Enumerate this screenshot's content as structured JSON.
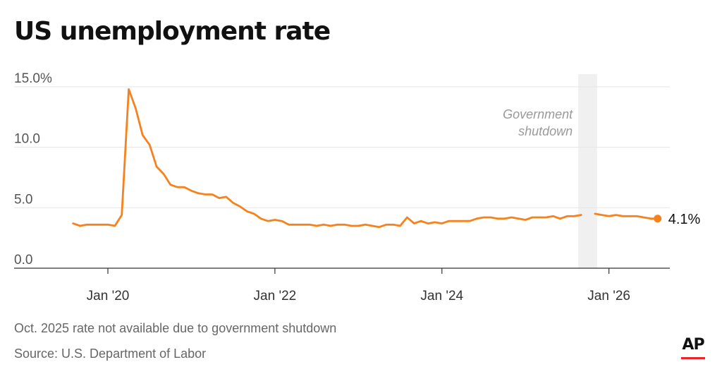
{
  "title": "US unemployment rate",
  "note": "Oct. 2025 rate not available due to government shutdown",
  "source": "Source: U.S. Department of Labor",
  "logo": {
    "text": "AP",
    "accent": "#e8262c"
  },
  "colors": {
    "line": "#f5821f",
    "shade": "#f0f0f0",
    "grid": "#e6e6e6",
    "axis": "#333333",
    "annotation": "#9a9a9a"
  },
  "chart_data": {
    "type": "line",
    "title": "US unemployment rate",
    "xlabel": "",
    "ylabel": "",
    "ylim": [
      0,
      15
    ],
    "y_ticks": [
      {
        "value": 0,
        "label": "0.0"
      },
      {
        "value": 5,
        "label": "5.0"
      },
      {
        "value": 10,
        "label": "10.0"
      },
      {
        "value": 15,
        "label": "15.0%"
      }
    ],
    "x_ticks": [
      {
        "value": "2020-01",
        "label": "Jan '20"
      },
      {
        "value": "2022-01",
        "label": "Jan '22"
      },
      {
        "value": "2024-01",
        "label": "Jan '24"
      },
      {
        "value": "2026-01",
        "label": "Jan '26"
      }
    ],
    "x_range": [
      "2019-05",
      "2026-08"
    ],
    "shaded_period": {
      "start": "2025-09",
      "end": "2025-11",
      "label": [
        "Government",
        "shutdown"
      ]
    },
    "end_label": "4.1%",
    "grid": true,
    "series": [
      {
        "segments": [
          {
            "x": [
              "2019-08",
              "2019-09",
              "2019-10",
              "2019-11",
              "2019-12",
              "2020-01",
              "2020-02",
              "2020-03",
              "2020-04",
              "2020-05",
              "2020-06",
              "2020-07",
              "2020-08",
              "2020-09",
              "2020-10",
              "2020-11",
              "2020-12",
              "2021-01",
              "2021-02",
              "2021-03",
              "2021-04",
              "2021-05",
              "2021-06",
              "2021-07",
              "2021-08",
              "2021-09",
              "2021-10",
              "2021-11",
              "2021-12",
              "2022-01",
              "2022-02",
              "2022-03",
              "2022-04",
              "2022-05",
              "2022-06",
              "2022-07",
              "2022-08",
              "2022-09",
              "2022-10",
              "2022-11",
              "2022-12",
              "2023-01",
              "2023-02",
              "2023-03",
              "2023-04",
              "2023-05",
              "2023-06",
              "2023-07",
              "2023-08",
              "2023-09",
              "2023-10",
              "2023-11",
              "2023-12",
              "2024-01",
              "2024-02",
              "2024-03",
              "2024-04",
              "2024-05",
              "2024-06",
              "2024-07",
              "2024-08",
              "2024-09",
              "2024-10",
              "2024-11",
              "2024-12",
              "2025-01",
              "2025-02",
              "2025-03",
              "2025-04",
              "2025-05",
              "2025-06",
              "2025-07",
              "2025-08",
              "2025-09"
            ],
            "y": [
              3.7,
              3.5,
              3.6,
              3.6,
              3.6,
              3.6,
              3.5,
              4.4,
              14.8,
              13.2,
              11.0,
              10.2,
              8.4,
              7.8,
              6.9,
              6.7,
              6.7,
              6.4,
              6.2,
              6.1,
              6.1,
              5.8,
              5.9,
              5.4,
              5.1,
              4.7,
              4.5,
              4.1,
              3.9,
              4.0,
              3.9,
              3.6,
              3.6,
              3.6,
              3.6,
              3.5,
              3.6,
              3.5,
              3.6,
              3.6,
              3.5,
              3.5,
              3.6,
              3.5,
              3.4,
              3.6,
              3.6,
              3.5,
              4.2,
              3.7,
              3.9,
              3.7,
              3.8,
              3.7,
              3.9,
              3.9,
              3.9,
              3.9,
              4.1,
              4.2,
              4.2,
              4.1,
              4.1,
              4.2,
              4.1,
              4.0,
              4.2,
              4.2,
              4.2,
              4.3,
              4.1,
              4.3,
              4.3,
              4.4
            ]
          },
          {
            "x": [
              "2025-11",
              "2025-12",
              "2026-01",
              "2026-02",
              "2026-03",
              "2026-04",
              "2026-05",
              "2026-06",
              "2026-07",
              "2026-08"
            ],
            "y": [
              4.5,
              4.4,
              4.3,
              4.4,
              4.3,
              4.3,
              4.3,
              4.2,
              4.1,
              4.1
            ]
          }
        ]
      }
    ]
  }
}
